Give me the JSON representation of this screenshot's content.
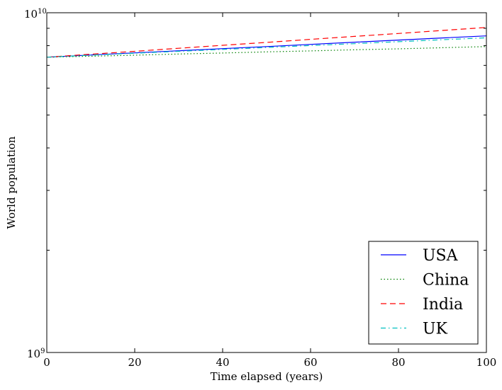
{
  "chart_data": {
    "type": "line",
    "title": "",
    "xlabel": "Time elapsed (years)",
    "ylabel": "World population",
    "xlim": [
      0,
      100
    ],
    "ylim": [
      1000000000,
      10000000000
    ],
    "yscale": "log",
    "grid": false,
    "legend_position": "lower-right",
    "x_ticks": [
      0,
      20,
      40,
      60,
      80,
      100
    ],
    "x_tick_labels": [
      "0",
      "20",
      "40",
      "60",
      "80",
      "100"
    ],
    "y_tick_labels": [
      {
        "base": "10",
        "exp": "9",
        "value": 1000000000
      },
      {
        "base": "10",
        "exp": "10",
        "value": 10000000000
      }
    ],
    "x": [
      0,
      10,
      20,
      30,
      40,
      50,
      60,
      70,
      80,
      90,
      100
    ],
    "series": [
      {
        "name": "USA",
        "color": "#0000ff",
        "dash": "solid",
        "values": [
          7400000000.0,
          7510000000.0,
          7620000000.0,
          7730000000.0,
          7840000000.0,
          7950000000.0,
          8070000000.0,
          8190000000.0,
          8310000000.0,
          8430000000.0,
          8550000000.0
        ]
      },
      {
        "name": "China",
        "color": "#008000",
        "dash": "dotted",
        "values": [
          7400000000.0,
          7450000000.0,
          7500000000.0,
          7560000000.0,
          7610000000.0,
          7670000000.0,
          7720000000.0,
          7780000000.0,
          7830000000.0,
          7890000000.0,
          7950000000.0
        ]
      },
      {
        "name": "India",
        "color": "#ff0000",
        "dash": "dashed",
        "values": [
          7400000000.0,
          7550000000.0,
          7700000000.0,
          7860000000.0,
          8020000000.0,
          8180000000.0,
          8350000000.0,
          8520000000.0,
          8690000000.0,
          8870000000.0,
          9050000000.0
        ]
      },
      {
        "name": "UK",
        "color": "#00bfbf",
        "dash": "dashdot",
        "values": [
          7400000000.0,
          7500000000.0,
          7600000000.0,
          7700000000.0,
          7800000000.0,
          7900000000.0,
          8010000000.0,
          8110000000.0,
          8220000000.0,
          8330000000.0,
          8440000000.0
        ]
      }
    ]
  }
}
